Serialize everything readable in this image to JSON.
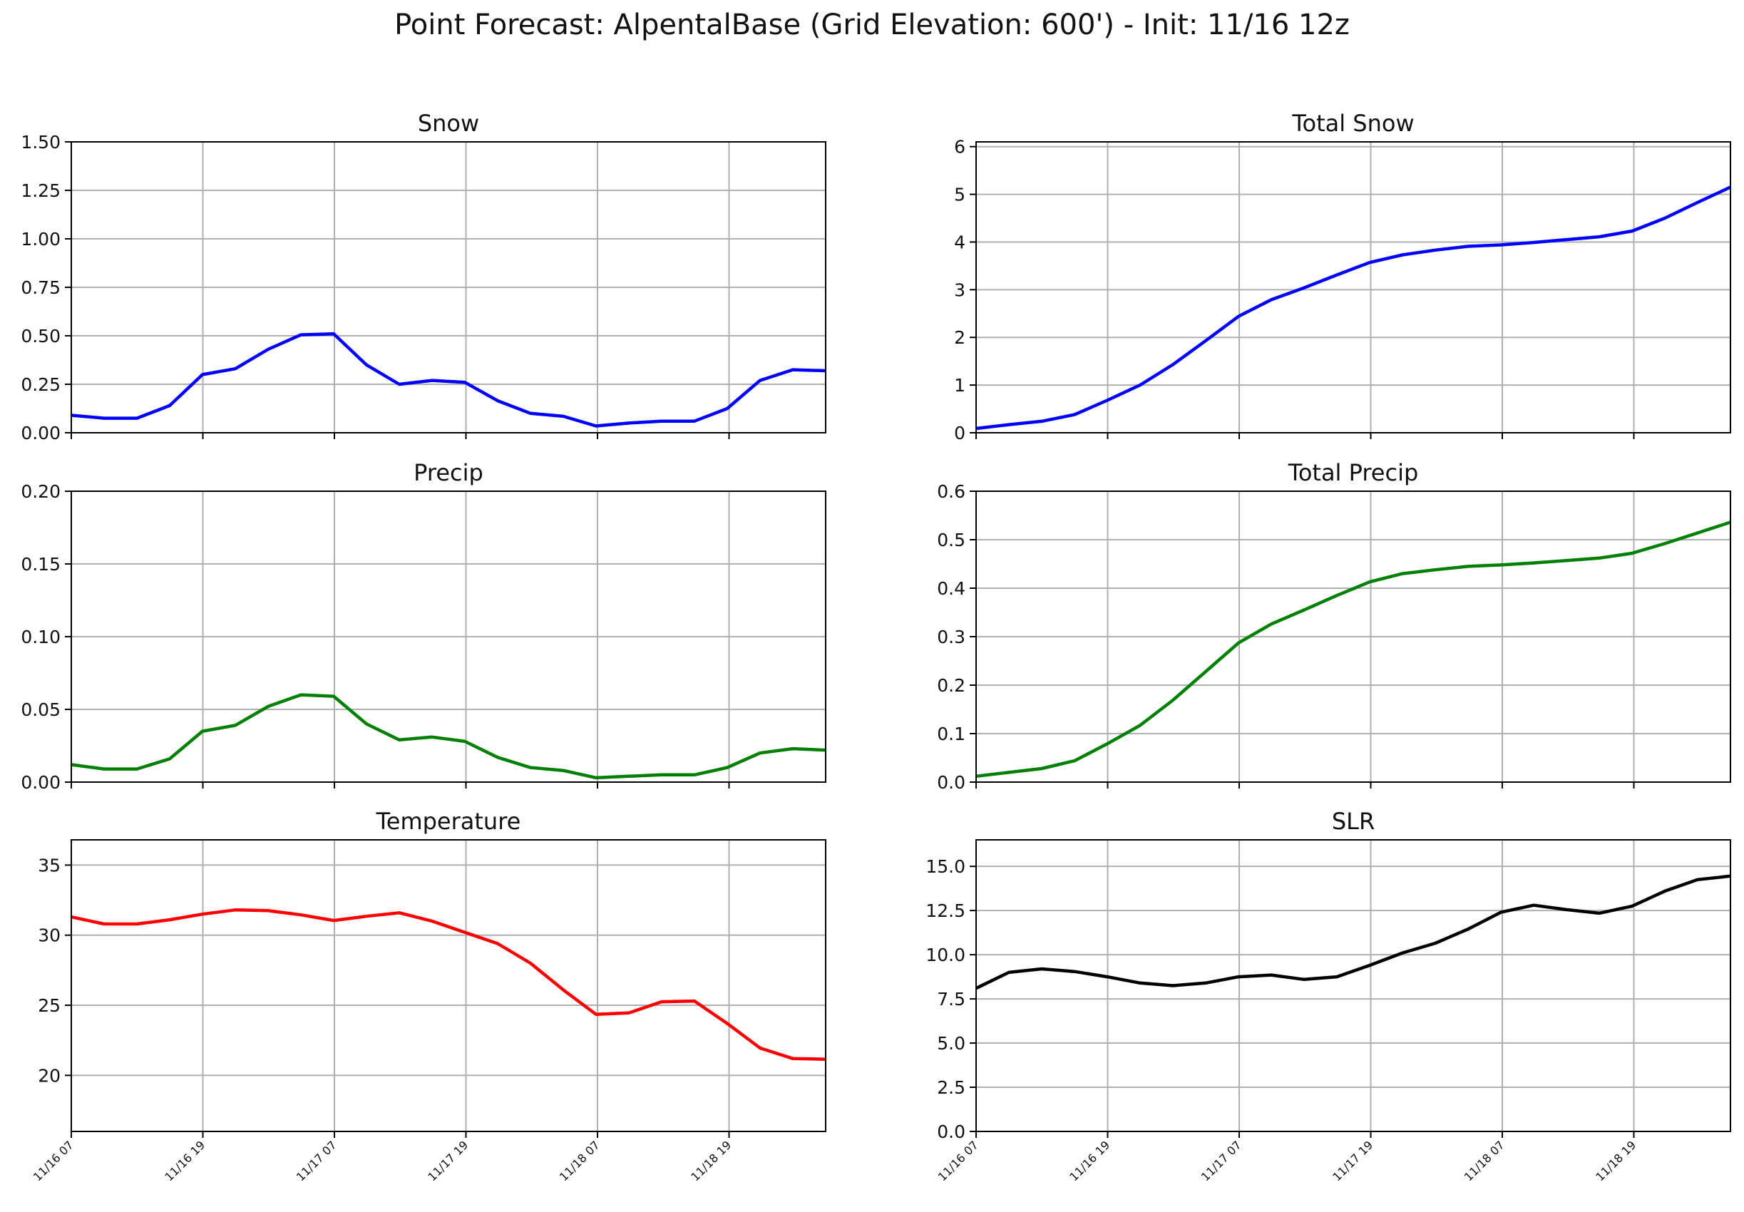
{
  "suptitle": "Point Forecast: AlpentalBase (Grid Elevation: 600') - Init: 11/16 12z",
  "x_ticks": [
    "11/16 07",
    "11/16 19",
    "11/17 07",
    "11/17 19",
    "11/18 07",
    "11/18 19"
  ],
  "chart_data": [
    {
      "type": "line",
      "title": "Snow",
      "color": "#0000ff",
      "ylim": [
        0,
        1.5
      ],
      "yticks": [
        "0.00",
        "0.25",
        "0.50",
        "0.75",
        "1.00",
        "1.25",
        "1.50"
      ],
      "ytick_values": [
        0,
        0.25,
        0.5,
        0.75,
        1.0,
        1.25,
        1.5
      ],
      "grid": true,
      "values": [
        0.09,
        0.075,
        0.075,
        0.14,
        0.3,
        0.33,
        0.43,
        0.505,
        0.51,
        0.35,
        0.25,
        0.27,
        0.26,
        0.165,
        0.1,
        0.085,
        0.035,
        0.05,
        0.06,
        0.06,
        0.125,
        0.27,
        0.325,
        0.32
      ]
    },
    {
      "type": "line",
      "title": "Total Snow",
      "color": "#0000ff",
      "ylim": [
        0,
        6.1
      ],
      "yticks": [
        "0",
        "1",
        "2",
        "3",
        "4",
        "5",
        "6"
      ],
      "ytick_values": [
        0,
        1,
        2,
        3,
        4,
        5,
        6
      ],
      "grid": true,
      "values": [
        0.09,
        0.17,
        0.24,
        0.38,
        0.68,
        1.0,
        1.43,
        1.93,
        2.44,
        2.79,
        3.04,
        3.31,
        3.57,
        3.73,
        3.83,
        3.91,
        3.94,
        3.99,
        4.05,
        4.11,
        4.23,
        4.5,
        4.83,
        5.15
      ]
    },
    {
      "type": "line",
      "title": "Precip",
      "color": "#008000",
      "ylim": [
        0,
        0.2
      ],
      "yticks": [
        "0.00",
        "0.05",
        "0.10",
        "0.15",
        "0.20"
      ],
      "ytick_values": [
        0,
        0.05,
        0.1,
        0.15,
        0.2
      ],
      "grid": true,
      "values": [
        0.012,
        0.009,
        0.009,
        0.016,
        0.035,
        0.039,
        0.052,
        0.06,
        0.059,
        0.04,
        0.029,
        0.031,
        0.028,
        0.017,
        0.01,
        0.008,
        0.003,
        0.004,
        0.005,
        0.005,
        0.01,
        0.02,
        0.023,
        0.022
      ]
    },
    {
      "type": "line",
      "title": "Total Precip",
      "color": "#008000",
      "ylim": [
        0,
        0.6
      ],
      "yticks": [
        "0.0",
        "0.1",
        "0.2",
        "0.3",
        "0.4",
        "0.5",
        "0.6"
      ],
      "ytick_values": [
        0,
        0.1,
        0.2,
        0.3,
        0.4,
        0.5,
        0.6
      ],
      "grid": true,
      "values": [
        0.012,
        0.02,
        0.028,
        0.044,
        0.079,
        0.117,
        0.169,
        0.228,
        0.287,
        0.326,
        0.355,
        0.385,
        0.413,
        0.43,
        0.438,
        0.445,
        0.448,
        0.452,
        0.457,
        0.462,
        0.472,
        0.492,
        0.514,
        0.536
      ]
    },
    {
      "type": "line",
      "title": "Temperature",
      "color": "#ff0000",
      "ylim": [
        16,
        36.8
      ],
      "yticks": [
        "20",
        "25",
        "30",
        "35"
      ],
      "ytick_values": [
        20,
        25,
        30,
        35
      ],
      "grid": true,
      "values": [
        31.3,
        30.8,
        30.8,
        31.1,
        31.5,
        31.8,
        31.75,
        31.45,
        31.05,
        31.35,
        31.6,
        31.0,
        30.2,
        29.4,
        28.0,
        26.1,
        24.35,
        24.45,
        25.25,
        25.3,
        23.7,
        21.95,
        21.2,
        21.15
      ]
    },
    {
      "type": "line",
      "title": "SLR",
      "color": "#000000",
      "ylim": [
        0,
        16.5
      ],
      "yticks": [
        "0.0",
        "2.5",
        "5.0",
        "7.5",
        "10.0",
        "12.5",
        "15.0"
      ],
      "ytick_values": [
        0,
        2.5,
        5.0,
        7.5,
        10.0,
        12.5,
        15.0
      ],
      "grid": true,
      "values": [
        8.1,
        9.0,
        9.2,
        9.05,
        8.75,
        8.4,
        8.25,
        8.4,
        8.75,
        8.85,
        8.6,
        8.75,
        9.4,
        10.1,
        10.65,
        11.45,
        12.4,
        12.8,
        12.55,
        12.35,
        12.75,
        13.6,
        14.25,
        14.45
      ]
    }
  ]
}
